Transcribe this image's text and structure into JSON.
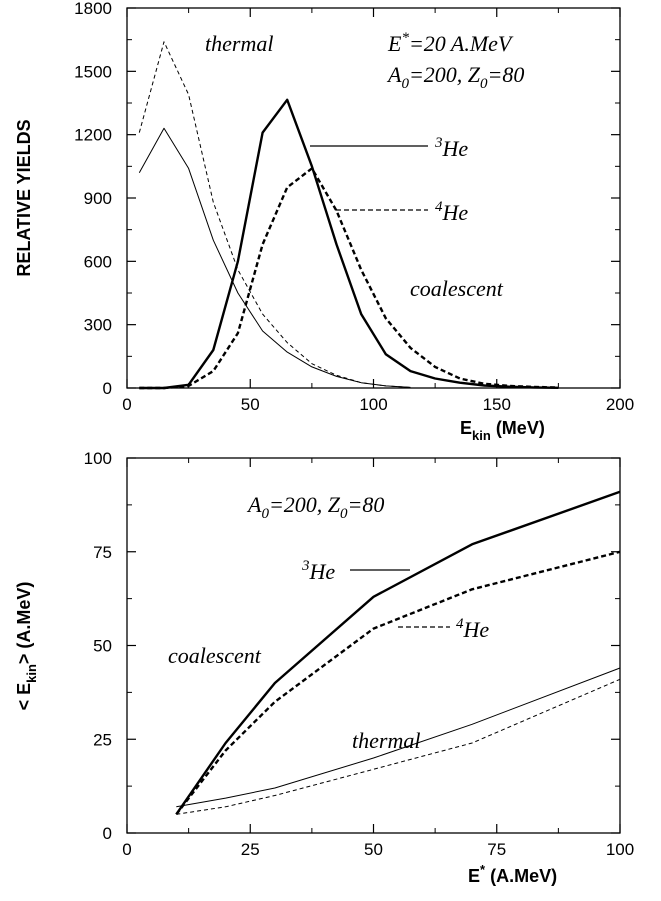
{
  "chart_data": [
    {
      "type": "line",
      "title": "",
      "xlabel": "E_kin (MeV)",
      "xlabel_main": "E",
      "xlabel_sub": "kin",
      "xlabel_rest": " (MeV)",
      "ylabel": "RELATIVE YIELDS",
      "xlim": [
        0,
        200
      ],
      "ylim": [
        0,
        1800
      ],
      "xticks": [
        0,
        50,
        100,
        150,
        200
      ],
      "yticks": [
        0,
        300,
        600,
        900,
        1200,
        1500,
        1800
      ],
      "grid": false,
      "annotations": {
        "thermal": "thermal",
        "coalescent": "coalescent",
        "energy_E": "E",
        "energy_sup": "*",
        "energy_rest": "=20 A.MeV",
        "system_A": "A",
        "system_A_sub": "0",
        "system_mid": "=200, Z",
        "system_Z_sub": "0",
        "system_end": "=80"
      },
      "legend": [
        {
          "sup": "3",
          "text": "He",
          "style": "solid"
        },
        {
          "sup": "4",
          "text": "He",
          "style": "dashed"
        }
      ],
      "series": [
        {
          "label": "3He thermal",
          "style": "thin-solid",
          "x": [
            5,
            15,
            25,
            35,
            45,
            55,
            65,
            75,
            85,
            95,
            105,
            115
          ],
          "y": [
            1020,
            1230,
            1040,
            700,
            450,
            270,
            170,
            100,
            55,
            25,
            10,
            3
          ]
        },
        {
          "label": "4He thermal",
          "style": "thin-dashed",
          "x": [
            5,
            15,
            25,
            35,
            45,
            55,
            65,
            75,
            85,
            95,
            105,
            115
          ],
          "y": [
            1210,
            1640,
            1390,
            880,
            560,
            350,
            215,
            115,
            60,
            25,
            10,
            3
          ]
        },
        {
          "label": "3He coalescent",
          "style": "thick-solid",
          "x": [
            5,
            15,
            25,
            35,
            45,
            55,
            65,
            75,
            85,
            95,
            105,
            115,
            125,
            135,
            145,
            155,
            165,
            175
          ],
          "y": [
            0,
            0,
            15,
            180,
            600,
            1210,
            1365,
            1050,
            680,
            350,
            160,
            80,
            45,
            25,
            12,
            6,
            3,
            1
          ]
        },
        {
          "label": "4He coalescent",
          "style": "thick-dashed",
          "x": [
            5,
            15,
            25,
            35,
            45,
            55,
            65,
            75,
            85,
            95,
            105,
            115,
            125,
            135,
            145,
            155,
            165,
            175
          ],
          "y": [
            0,
            0,
            10,
            80,
            260,
            680,
            950,
            1040,
            840,
            560,
            330,
            190,
            100,
            45,
            20,
            10,
            5,
            2
          ]
        }
      ]
    },
    {
      "type": "line",
      "title": "",
      "xlabel": "E* (A.MeV)",
      "xlabel_main": "E",
      "xlabel_sup": "*",
      "xlabel_rest": " (A.MeV)",
      "ylabel": "< E_kin> (A.MeV)",
      "ylabel_pre": "< E",
      "ylabel_sub": "kin",
      "ylabel_rest": "> (A.MeV)",
      "xlim": [
        0,
        100
      ],
      "ylim": [
        0,
        100
      ],
      "xticks": [
        0,
        25,
        50,
        75,
        100
      ],
      "yticks": [
        0,
        25,
        50,
        75,
        100
      ],
      "grid": false,
      "annotations": {
        "thermal": "thermal",
        "coalescent": "coalescent",
        "system_A": "A",
        "system_A_sub": "0",
        "system_mid": "=200, Z",
        "system_Z_sub": "0",
        "system_end": "=80"
      },
      "legend": [
        {
          "sup": "3",
          "text": "He",
          "style": "solid"
        },
        {
          "sup": "4",
          "text": "He",
          "style": "dashed"
        }
      ],
      "series": [
        {
          "label": "3He coalescent",
          "style": "thick-solid",
          "x": [
            10,
            20,
            30,
            50,
            70,
            100
          ],
          "y": [
            5,
            24,
            40,
            63,
            77,
            91
          ]
        },
        {
          "label": "4He coalescent",
          "style": "thick-dashed",
          "x": [
            10,
            20,
            30,
            50,
            70,
            100
          ],
          "y": [
            5,
            22,
            35,
            54.5,
            65,
            75
          ]
        },
        {
          "label": "3He thermal",
          "style": "thin-solid",
          "x": [
            10,
            20,
            30,
            50,
            70,
            100
          ],
          "y": [
            7,
            9.3,
            12,
            20,
            29,
            44
          ]
        },
        {
          "label": "4He thermal",
          "style": "thin-dashed",
          "x": [
            10,
            20,
            30,
            50,
            70,
            100
          ],
          "y": [
            5,
            7,
            10,
            17,
            24,
            41
          ]
        }
      ]
    }
  ]
}
